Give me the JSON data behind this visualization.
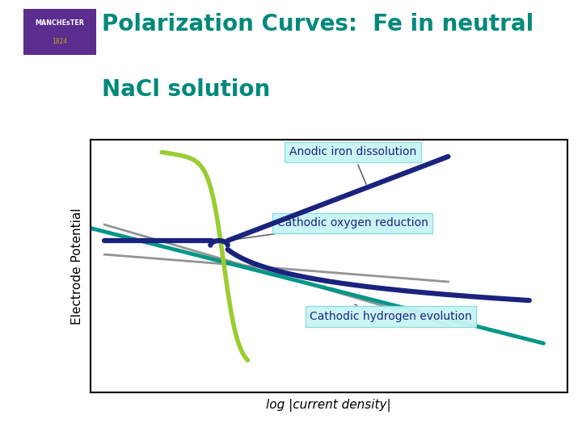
{
  "title_line1": "Polarization Curves:  Fe in neutral",
  "title_line2": "NaCl solution",
  "title_color": "#00897B",
  "title_fontsize": 20,
  "ylabel": "Electrode Potential",
  "xlabel": "log |current density|",
  "bg_color": "#ffffff",
  "plot_bg": "#ffffff",
  "annotation_bg": "#c8f5f5",
  "annotation_edge": "#88dddd",
  "manchester_purple": "#5b2d8e",
  "manchester_gold": "#c8a020",
  "curve_green": "#9acd32",
  "curve_navy": "#1a237e",
  "curve_teal": "#009688",
  "curve_gray": "#888888",
  "lw_main": 3.5
}
